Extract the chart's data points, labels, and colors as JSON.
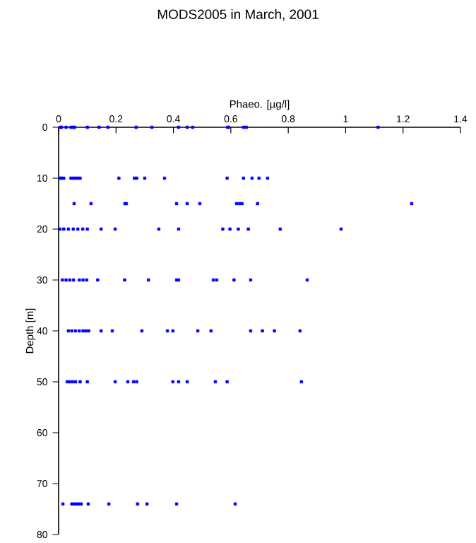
{
  "chart_data": {
    "type": "scatter",
    "title": "MODS2005 in March, 2001",
    "xlabel": "Phaeo. [µg/l]",
    "ylabel": "Depth [m]",
    "xlim": [
      0,
      1.4
    ],
    "xticks": [
      0,
      0.2,
      0.4,
      0.6,
      0.8,
      1,
      1.2,
      1.4
    ],
    "ylim": [
      80,
      0
    ],
    "yticks": [
      0,
      10,
      20,
      30,
      40,
      50,
      60,
      70,
      80
    ],
    "marker": "square",
    "grid": false,
    "series": [
      {
        "color": "#0000ff",
        "x": [
          0.005,
          0.01,
          0.026,
          0.043,
          0.051,
          0.056,
          0.1,
          0.141,
          0.172,
          0.27,
          0.325,
          0.418,
          0.448,
          0.467,
          0.589,
          0.592,
          0.644,
          0.654,
          1.113,
          0.005,
          0.01,
          0.018,
          0.043,
          0.051,
          0.059,
          0.067,
          0.075,
          0.21,
          0.264,
          0.272,
          0.3,
          0.369,
          0.587,
          0.644,
          0.674,
          0.698,
          0.728,
          0.054,
          0.113,
          0.231,
          0.236,
          0.411,
          0.448,
          0.492,
          0.62,
          0.63,
          0.639,
          0.693,
          1.23,
          0.005,
          0.018,
          0.034,
          0.051,
          0.067,
          0.084,
          0.1,
          0.148,
          0.197,
          0.349,
          0.418,
          0.572,
          0.597,
          0.626,
          0.661,
          0.772,
          0.984,
          0.013,
          0.026,
          0.039,
          0.052,
          0.072,
          0.085,
          0.098,
          0.136,
          0.23,
          0.313,
          0.411,
          0.418,
          0.539,
          0.551,
          0.611,
          0.669,
          0.866,
          0.034,
          0.046,
          0.059,
          0.072,
          0.085,
          0.095,
          0.105,
          0.148,
          0.187,
          0.29,
          0.379,
          0.398,
          0.485,
          0.531,
          0.669,
          0.71,
          0.752,
          0.841,
          0.03,
          0.039,
          0.049,
          0.059,
          0.075,
          0.1,
          0.197,
          0.241,
          0.261,
          0.272,
          0.398,
          0.418,
          0.448,
          0.546,
          0.587,
          0.846,
          0.015,
          0.046,
          0.054,
          0.062,
          0.07,
          0.079,
          0.103,
          0.175,
          0.275,
          0.308,
          0.411,
          0.615
        ],
        "values": [
          0,
          0,
          0,
          0,
          0,
          0,
          0,
          0,
          0,
          0,
          0,
          0,
          0,
          0,
          0,
          0,
          0,
          0,
          0,
          10,
          10,
          10,
          10,
          10,
          10,
          10,
          10,
          10,
          10,
          10,
          10,
          10,
          10,
          10,
          10,
          10,
          10,
          15,
          15,
          15,
          15,
          15,
          15,
          15,
          15,
          15,
          15,
          15,
          15,
          20,
          20,
          20,
          20,
          20,
          20,
          20,
          20,
          20,
          20,
          20,
          20,
          20,
          20,
          20,
          20,
          20,
          30,
          30,
          30,
          30,
          30,
          30,
          30,
          30,
          30,
          30,
          30,
          30,
          30,
          30,
          30,
          30,
          30,
          40,
          40,
          40,
          40,
          40,
          40,
          40,
          40,
          40,
          40,
          40,
          40,
          40,
          40,
          40,
          40,
          40,
          40,
          50,
          50,
          50,
          50,
          50,
          50,
          50,
          50,
          50,
          50,
          50,
          50,
          50,
          50,
          50,
          50,
          74,
          74,
          74,
          74,
          74,
          74,
          74,
          74,
          74,
          74,
          74,
          74
        ]
      }
    ]
  }
}
